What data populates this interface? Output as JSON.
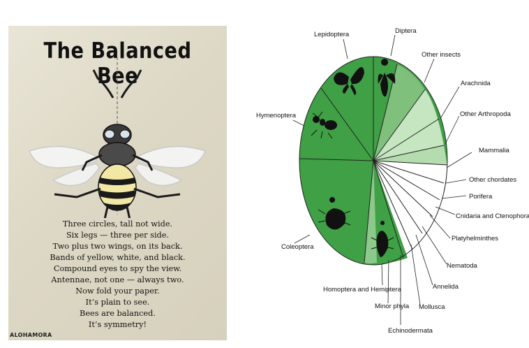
{
  "poster": {
    "title": "The Balanced Bee",
    "poem": [
      "Three circles, tall not wide.",
      "Six legs — three per side.",
      "Two plus two wings, on its back.",
      "Bands of yellow, white, and black.",
      "Compound eyes to spy the view.",
      "Antennae, not one — always two.",
      "Now fold your paper.",
      "It’s plain to see.",
      "Bees are balanced.",
      "It’s symmetry!"
    ],
    "credit": "ALOHAMORA",
    "colors": {
      "paper": "#e3dfcf",
      "yellow": "#f2e7a5",
      "black": "#1a1a1a"
    }
  },
  "diagram": {
    "labels": [
      "Lepidoptera",
      "Diptera",
      "Other insects",
      "Arachnida",
      "Other Arthropoda",
      "Mammalia",
      "Other chordates",
      "Porifera",
      "Cnidaria and Ctenophora",
      "Platyhelminthes",
      "Nematoda",
      "Annelida",
      "Mollusca",
      "Echinodermata",
      "Minor phyla",
      "Homoptera and Hemiptera",
      "Coleoptera",
      "Hymenoptera"
    ],
    "icons": [
      "butterfly-icon",
      "fly-icon",
      "ant-icon",
      "beetle-icon",
      "bug-icon"
    ],
    "colors": {
      "insects": "#3fa045",
      "light1": "#8cc98a",
      "light2": "#c6e6c1",
      "outline": "#222222"
    }
  }
}
